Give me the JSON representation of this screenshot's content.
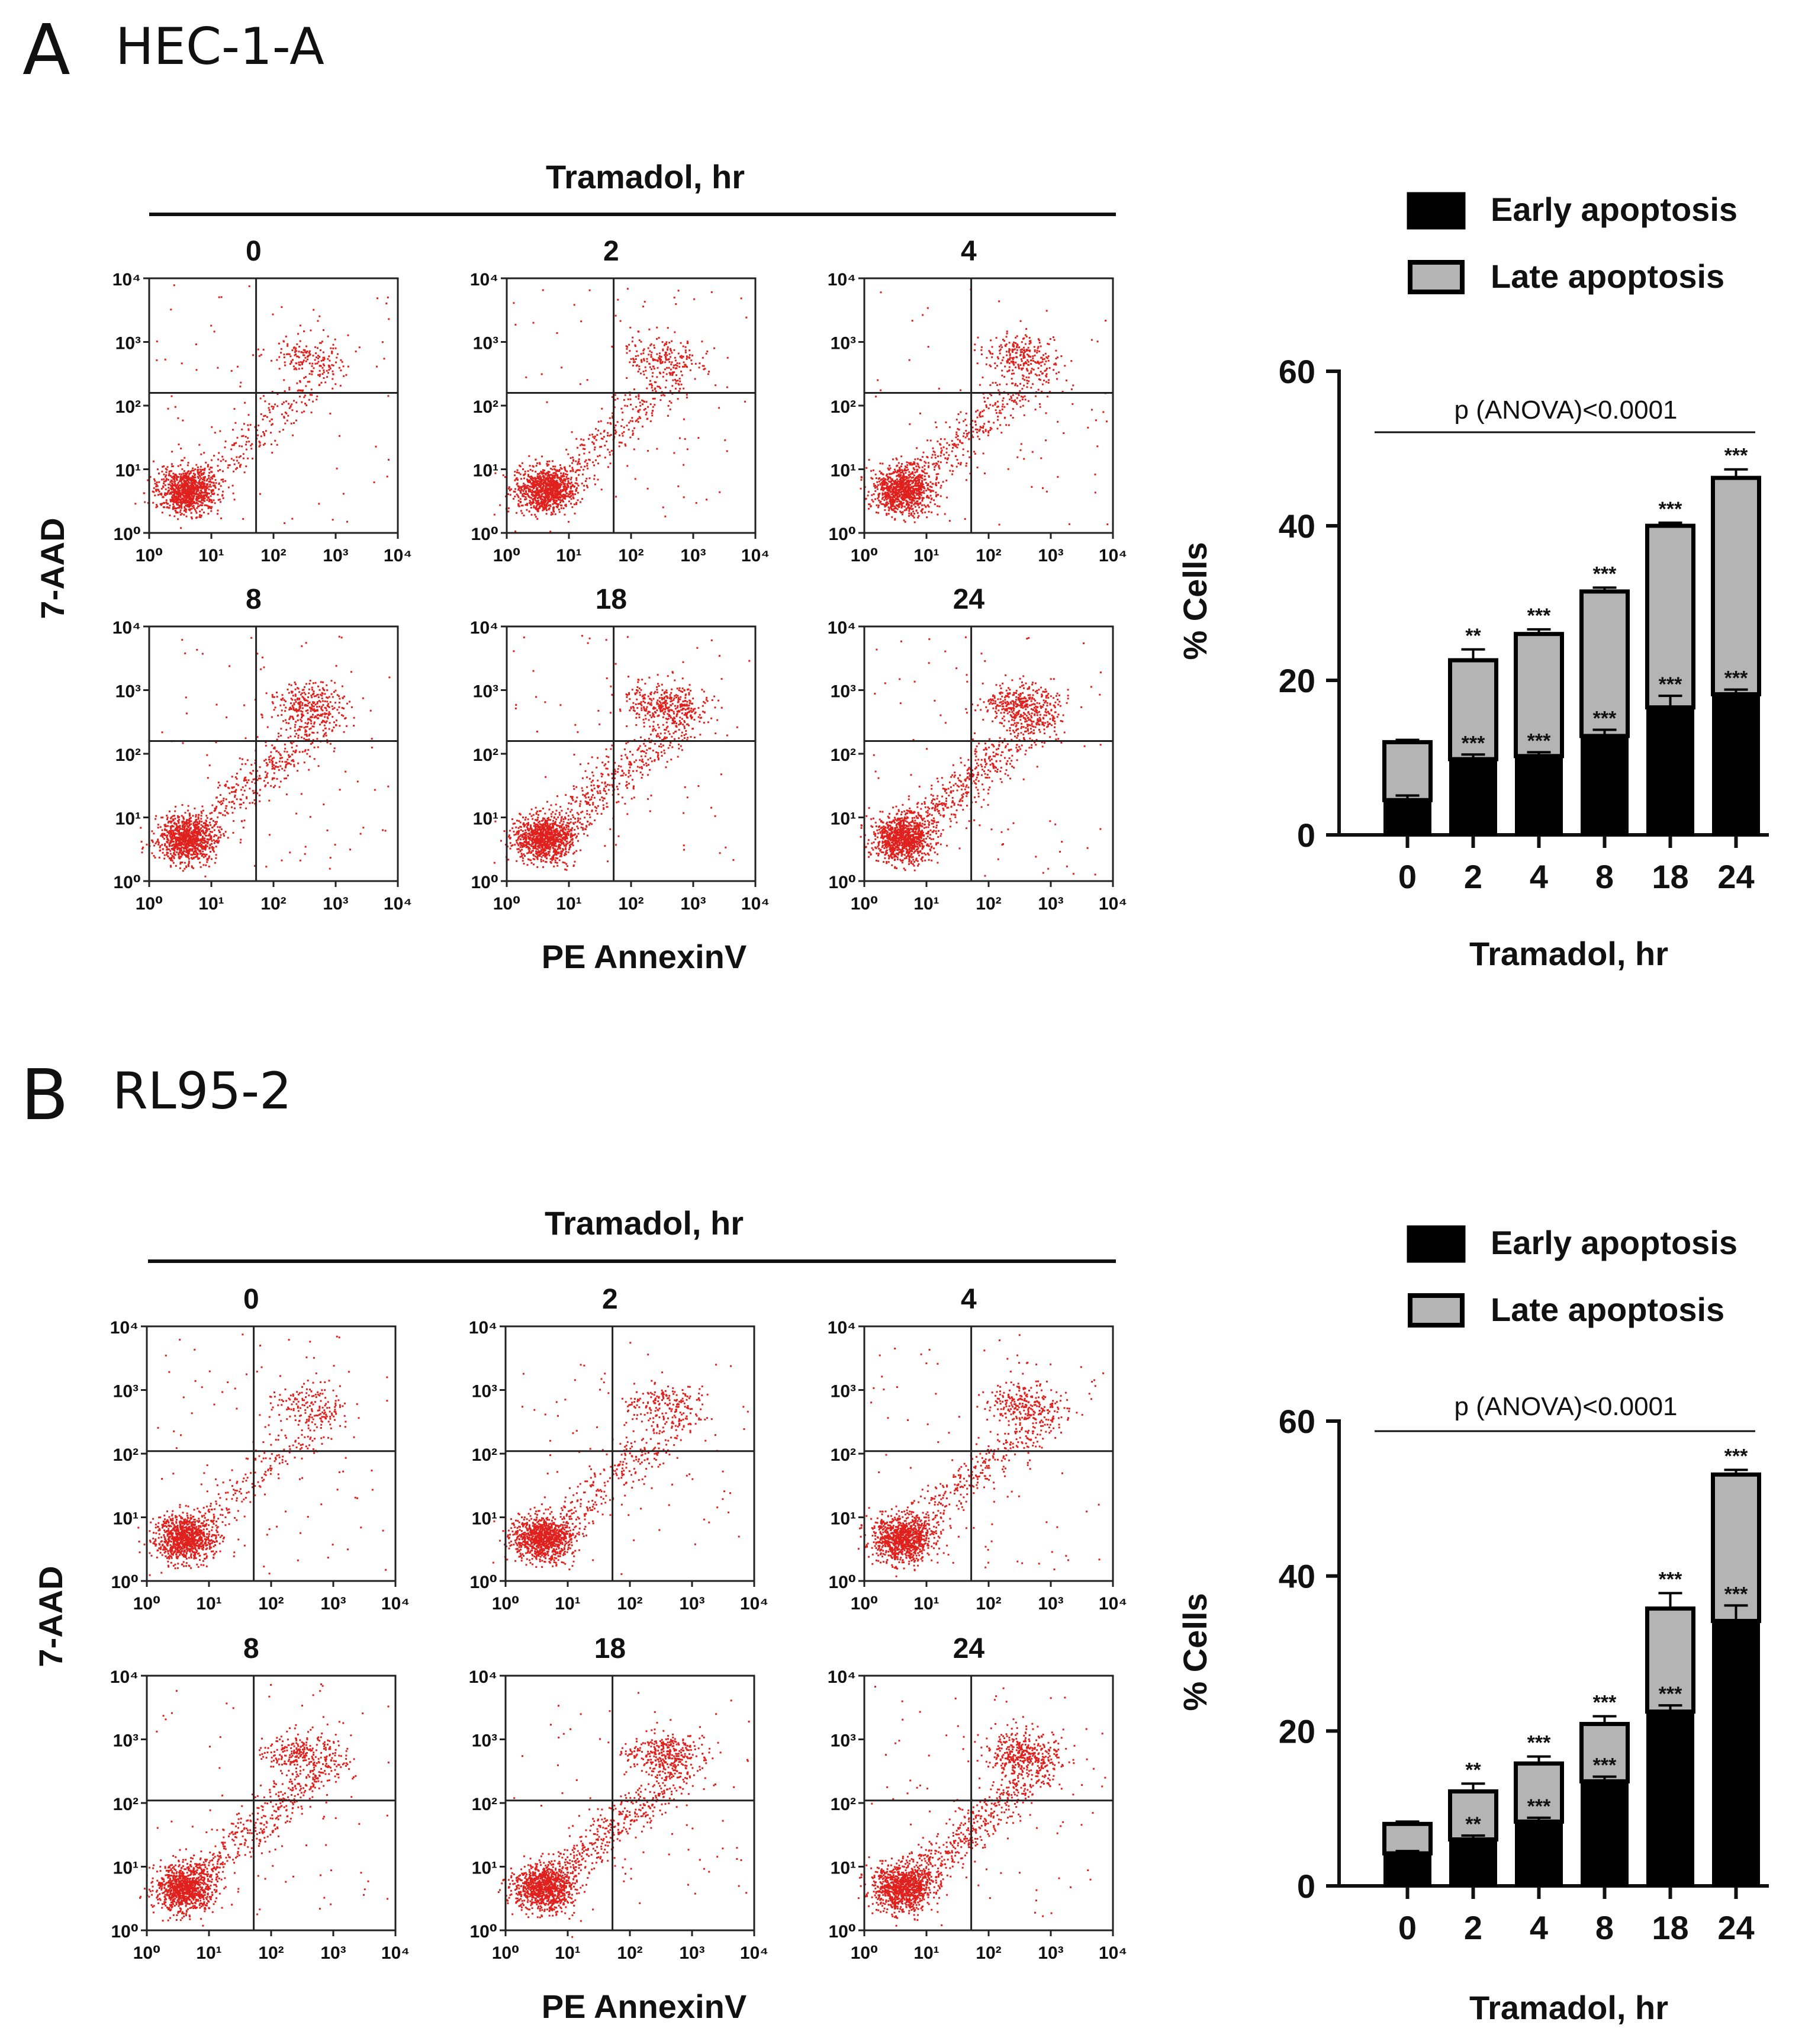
{
  "panels": [
    {
      "id": "A",
      "letter": "A",
      "cell_line": "HEC-1-A",
      "flow": {
        "header": "Tramadol, hr",
        "x_label": "PE AnnexinV",
        "y_label": "7-AAD",
        "tick_labels": [
          "10⁰",
          "10¹",
          "10²",
          "10³",
          "10⁴"
        ],
        "subplot_labels": [
          "0",
          "2",
          "4",
          "8",
          "18",
          "24"
        ]
      },
      "chart_data": {
        "type": "bar",
        "stacked": true,
        "categories": [
          "0",
          "2",
          "4",
          "8",
          "18",
          "24"
        ],
        "series": [
          {
            "name": "Early apoptosis",
            "color": "#000000",
            "values": [
              4.5,
              9.8,
              10.2,
              12.8,
              16.5,
              18.2
            ],
            "error": [
              0.6,
              0.6,
              0.5,
              0.8,
              1.5,
              0.6
            ],
            "significance": [
              "",
              "***",
              "***",
              "***",
              "***",
              "***"
            ]
          },
          {
            "name": "Late apoptosis",
            "color": "#b4b4b4",
            "values": [
              7.5,
              12.8,
              15.8,
              18.7,
              23.5,
              28.0
            ],
            "error": [
              0.3,
              1.4,
              0.6,
              0.5,
              0.4,
              1.1
            ],
            "significance": [
              "",
              "**",
              "***",
              "***",
              "***",
              "***"
            ]
          }
        ],
        "ylabel": "% Cells",
        "xlabel": "Tramadol, hr",
        "ylim": [
          0,
          60
        ],
        "yticks": [
          "0",
          "20",
          "40",
          "60"
        ],
        "annotation": "p (ANOVA)<0.0001",
        "legend_position": "top-right"
      }
    },
    {
      "id": "B",
      "letter": "B",
      "cell_line": "RL95-2",
      "flow": {
        "header": "Tramadol, hr",
        "x_label": "PE AnnexinV",
        "y_label": "7-AAD",
        "tick_labels": [
          "10⁰",
          "10¹",
          "10²",
          "10³",
          "10⁴"
        ],
        "subplot_labels": [
          "0",
          "2",
          "4",
          "8",
          "18",
          "24"
        ]
      },
      "chart_data": {
        "type": "bar",
        "stacked": true,
        "categories": [
          "0",
          "2",
          "4",
          "8",
          "18",
          "24"
        ],
        "series": [
          {
            "name": "Early apoptosis",
            "color": "#000000",
            "values": [
              4.2,
              6.0,
              8.3,
              13.5,
              22.5,
              34.2
            ],
            "error": [
              0.3,
              0.5,
              0.5,
              0.6,
              0.8,
              2.0
            ],
            "significance": [
              "",
              "**",
              "***",
              "***",
              "***",
              "***"
            ]
          },
          {
            "name": "Late apoptosis",
            "color": "#b4b4b4",
            "values": [
              3.8,
              6.2,
              7.5,
              7.4,
              13.3,
              18.9
            ],
            "error": [
              0.3,
              1.0,
              0.9,
              1.0,
              2.0,
              0.6
            ],
            "significance": [
              "",
              "**",
              "***",
              "***",
              "***",
              "***"
            ]
          }
        ],
        "ylabel": "% Cells",
        "xlabel": "Tramadol, hr",
        "ylim": [
          0,
          60
        ],
        "yticks": [
          "0",
          "20",
          "40",
          "60"
        ],
        "annotation": "p (ANOVA)<0.0001",
        "legend_position": "top-right"
      }
    }
  ]
}
